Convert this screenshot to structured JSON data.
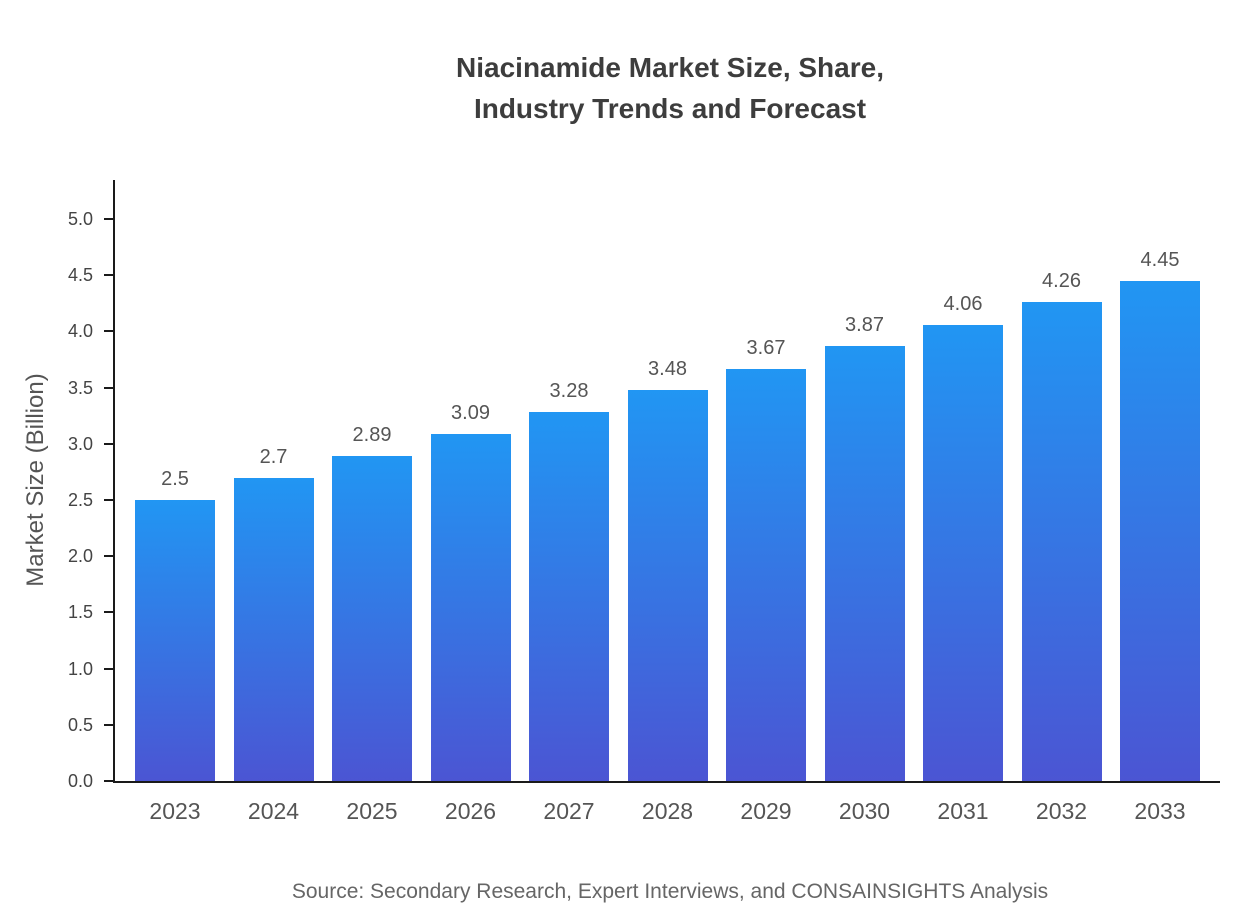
{
  "chart_data": {
    "type": "bar",
    "title": "Niacinamide Market Size, Share, Industry Trends and Forecast",
    "title_lines": [
      "Niacinamide Market Size, Share,",
      "Industry Trends and Forecast"
    ],
    "categories": [
      "2023",
      "2024",
      "2025",
      "2026",
      "2027",
      "2028",
      "2029",
      "2030",
      "2031",
      "2032",
      "2033"
    ],
    "values": [
      2.5,
      2.7,
      2.89,
      3.09,
      3.28,
      3.48,
      3.67,
      3.87,
      4.06,
      4.26,
      4.45
    ],
    "value_labels": [
      "2.5",
      "2.7",
      "2.89",
      "3.09",
      "3.28",
      "3.48",
      "3.67",
      "3.87",
      "4.06",
      "4.26",
      "4.45"
    ],
    "xlabel": "",
    "ylabel": "Market Size (Billion)",
    "ylim": [
      0,
      5.0
    ],
    "yticks": [
      "0.0",
      "0.5",
      "1.0",
      "1.5",
      "2.0",
      "2.5",
      "3.0",
      "3.5",
      "4.0",
      "4.5",
      "5.0"
    ],
    "grid": false,
    "legend": false,
    "bar_gradient_top": "#2196f3",
    "bar_gradient_bottom": "#4b55d3",
    "axis_color": "#1a1a1a",
    "label_color": "#555555"
  },
  "source_note": "Source: Secondary Research, Expert Interviews, and CONSAINSIGHTS Analysis"
}
